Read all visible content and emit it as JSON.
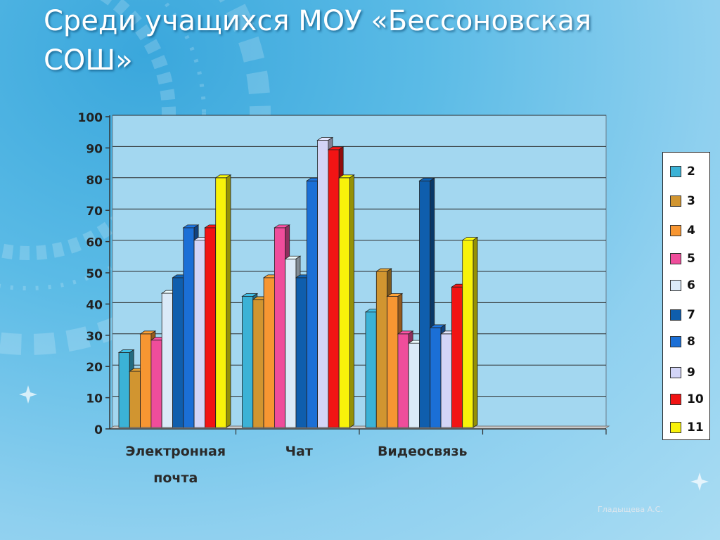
{
  "title": "Среди учащихся МОУ «Бессоновская СОШ»",
  "author": "Гладыщева А.С.",
  "chart_data": {
    "type": "bar",
    "categories": [
      "Электронная почта",
      "Чат",
      "Видеосвязь",
      ""
    ],
    "ylim": [
      0,
      100
    ],
    "yticks": [
      0,
      10,
      20,
      30,
      40,
      50,
      60,
      70,
      80,
      90,
      100
    ],
    "grid": true,
    "legend_position": "right",
    "series": [
      {
        "name": "2",
        "color": "#3bb2d6",
        "values": [
          24,
          42,
          37,
          0
        ]
      },
      {
        "name": "3",
        "color": "#d19530",
        "values": [
          18,
          41,
          50,
          0
        ]
      },
      {
        "name": "4",
        "color": "#f79632",
        "values": [
          30,
          48,
          42,
          0
        ]
      },
      {
        "name": "5",
        "color": "#ef4d9b",
        "values": [
          28,
          64,
          30,
          0
        ]
      },
      {
        "name": "6",
        "color": "#dbeaf8",
        "values": [
          43,
          54,
          27,
          0
        ]
      },
      {
        "name": "7",
        "color": "#0f5ead",
        "values": [
          48,
          48,
          79,
          0
        ]
      },
      {
        "name": "8",
        "color": "#1b6fd6",
        "values": [
          64,
          79,
          32,
          0
        ]
      },
      {
        "name": "9",
        "color": "#d3d5f7",
        "values": [
          60,
          92,
          30,
          0
        ]
      },
      {
        "name": "10",
        "color": "#f11414",
        "values": [
          64,
          89,
          45,
          0
        ]
      },
      {
        "name": "11",
        "color": "#f8f20a",
        "values": [
          80,
          80,
          60,
          0
        ]
      }
    ]
  }
}
